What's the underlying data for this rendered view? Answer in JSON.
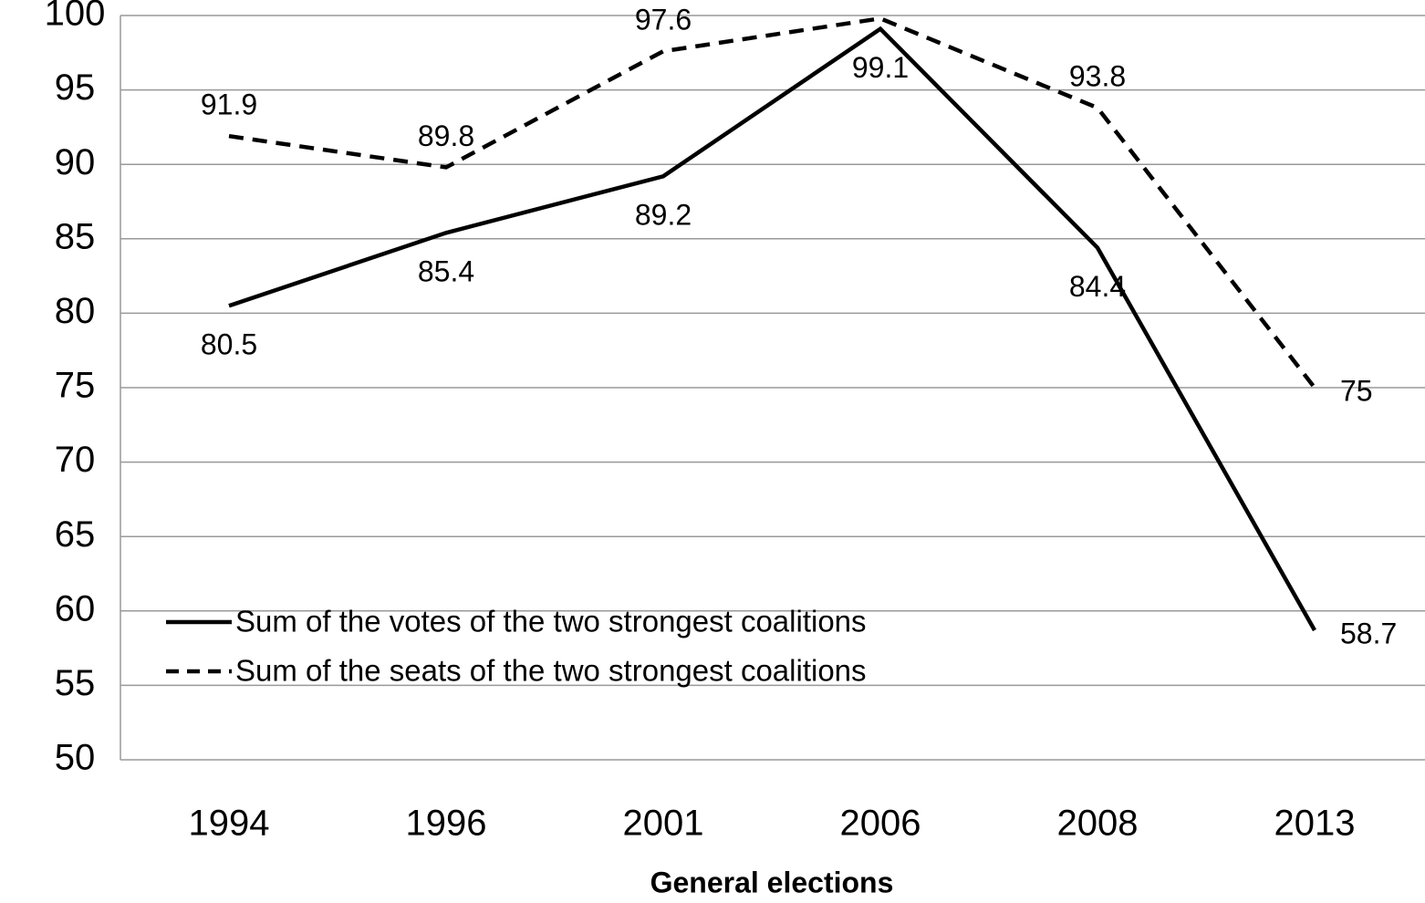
{
  "chart_data": {
    "type": "line",
    "x_label": "General elections",
    "categories": [
      "1994",
      "1996",
      "2001",
      "2006",
      "2008",
      "2013"
    ],
    "series": [
      {
        "name": "Sum of the votes of the two strongest coalitions",
        "color": "#000000",
        "dash": "solid",
        "values": [
          80.5,
          85.4,
          89.2,
          99.1,
          84.4,
          58.7
        ]
      },
      {
        "name": "Sum of the seats of the two strongest coalitions",
        "color": "#000000",
        "dash": "dashed",
        "values": [
          91.9,
          89.8,
          97.6,
          99.8,
          93.8,
          75
        ]
      }
    ],
    "ylim": [
      50,
      100
    ],
    "yticks": [
      50,
      55,
      60,
      65,
      70,
      75,
      80,
      85,
      90,
      95,
      100
    ],
    "grid": true,
    "legend": "lower left"
  }
}
